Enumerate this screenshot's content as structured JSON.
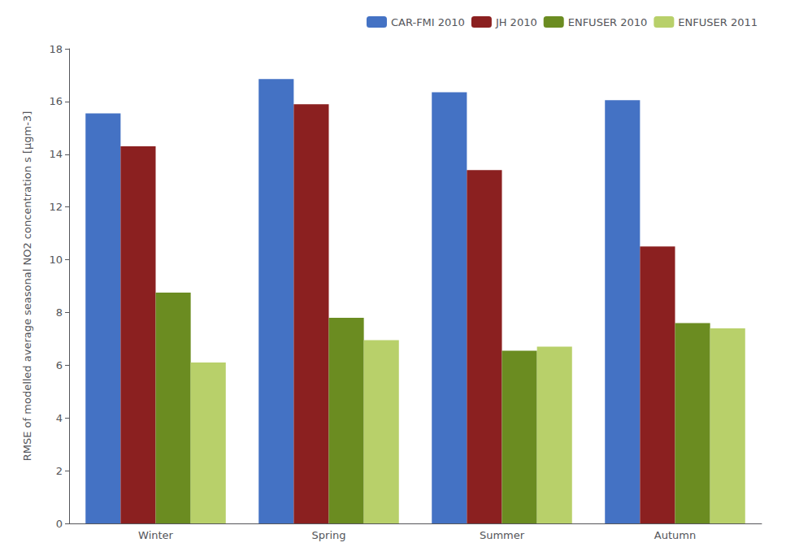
{
  "chart_data": {
    "type": "bar",
    "ylabel": "RMSE of modelled average seasonal NO2 concentration s [μgm-3]",
    "categories": [
      "Winter",
      "Spring",
      "Summer",
      "Autumn"
    ],
    "series": [
      {
        "name": "CAR-FMI 2010",
        "color": "#4472C4",
        "values": [
          15.55,
          16.85,
          16.35,
          16.05
        ]
      },
      {
        "name": "JH 2010",
        "color": "#8B2020",
        "values": [
          14.3,
          15.9,
          13.4,
          10.5
        ]
      },
      {
        "name": "ENFUSER 2010",
        "color": "#6B8C21",
        "values": [
          8.75,
          7.8,
          6.55,
          7.6
        ]
      },
      {
        "name": "ENFUSER 2011",
        "color": "#B8D06A",
        "values": [
          6.1,
          6.95,
          6.7,
          7.4
        ]
      }
    ],
    "ylim": [
      0,
      18
    ],
    "yticks": [
      0,
      2,
      4,
      6,
      8,
      10,
      12,
      14,
      16,
      18
    ],
    "grid": false,
    "legend": "upper right"
  }
}
